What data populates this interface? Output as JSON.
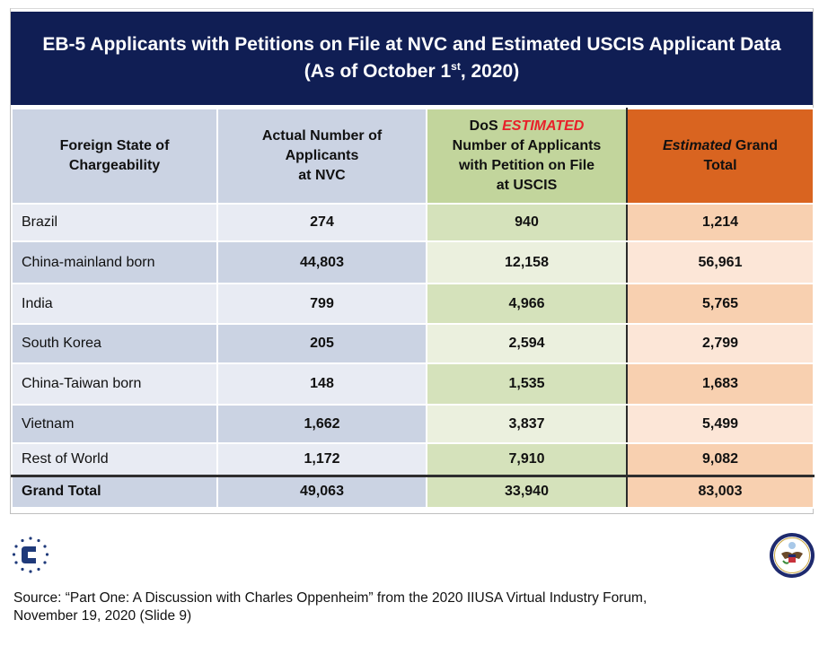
{
  "title": {
    "line1": "EB-5 Applicants with Petitions on File at NVC and Estimated USCIS Applicant Data",
    "line2_prefix": "(As of October 1",
    "line2_sup": "st",
    "line2_suffix": ", 2020)"
  },
  "table": {
    "headers": {
      "col1": [
        "Foreign State of",
        "Chargeability"
      ],
      "col2": [
        "Actual Number of",
        "Applicants",
        "at NVC"
      ],
      "col3": {
        "prefix": "DoS ",
        "highlight": "ESTIMATED",
        "lines": [
          "Number of Applicants",
          "with Petition on File",
          "at USCIS"
        ]
      },
      "col4": {
        "italic": "Estimated",
        "rest": " Grand",
        "line2": "Total"
      }
    },
    "rows": [
      {
        "name": "Brazil",
        "nvc": "274",
        "uscis": "940",
        "total": "1,214"
      },
      {
        "name": "China-mainland born",
        "nvc": "44,803",
        "uscis": "12,158",
        "total": "56,961"
      },
      {
        "name": "India",
        "nvc": "799",
        "uscis": "4,966",
        "total": "5,765"
      },
      {
        "name": "South Korea",
        "nvc": "205",
        "uscis": "2,594",
        "total": "2,799"
      },
      {
        "name": "China-Taiwan born",
        "nvc": "148",
        "uscis": "1,535",
        "total": "1,683"
      },
      {
        "name": "Vietnam",
        "nvc": "1,662",
        "uscis": "3,837",
        "total": "5,499"
      },
      {
        "name": "Rest of World",
        "nvc": "1,172",
        "uscis": "7,910",
        "total": "9,082"
      }
    ],
    "grand_total": {
      "name": "Grand Total",
      "nvc": "49,063",
      "uscis": "33,940",
      "total": "83,003"
    }
  },
  "logos": {
    "left": "C",
    "right": "Department of State seal"
  },
  "colors": {
    "title_bg": "#101e54",
    "estimated_red": "#e8202a",
    "orange_header": "#d96420",
    "green_header": "#c2d59c",
    "blue_header": "#cbd3e3"
  },
  "source": {
    "line1": "Source: “Part One: A Discussion with Charles Oppenheim” from the 2020 IIUSA Virtual Industry Forum,",
    "line2": "November 19, 2020 (Slide 9)"
  }
}
